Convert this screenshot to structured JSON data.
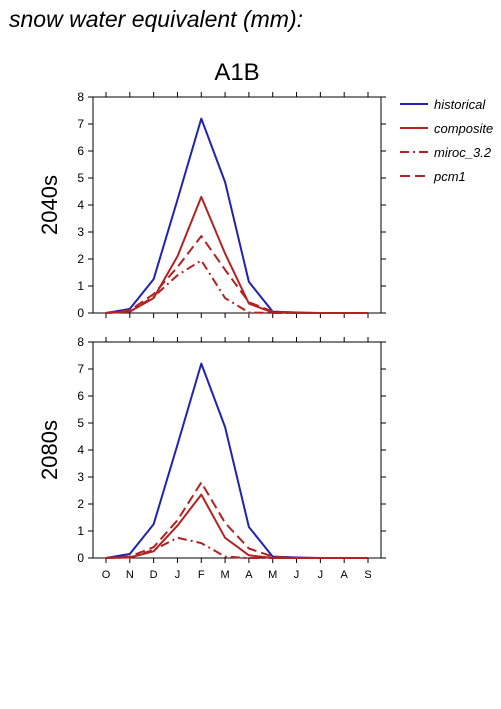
{
  "heading": "snow water equivalent (mm):",
  "chart_data": {
    "type": "line",
    "title": "A1B",
    "months": [
      "O",
      "N",
      "D",
      "J",
      "F",
      "M",
      "A",
      "M",
      "J",
      "J",
      "A",
      "S"
    ],
    "ylim": [
      0,
      8
    ],
    "yticks": [
      0,
      1,
      2,
      3,
      4,
      5,
      6,
      7,
      8
    ],
    "grid": false,
    "legend_position": "right",
    "legend": [
      {
        "name": "historical",
        "color": "#2222b0",
        "dash": "solid"
      },
      {
        "name": "composite",
        "color": "#b22222",
        "dash": "solid"
      },
      {
        "name": "miroc_3.2",
        "color": "#b22222",
        "dash": "dashdot"
      },
      {
        "name": "pcm1",
        "color": "#b22222",
        "dash": "dashed"
      }
    ],
    "panels": [
      {
        "label": "2040s",
        "series": [
          {
            "name": "historical",
            "values": [
              0,
              0.15,
              1.25,
              4.2,
              7.2,
              4.85,
              1.15,
              0.05,
              0.02,
              0,
              0,
              0
            ]
          },
          {
            "name": "composite",
            "values": [
              0,
              0.05,
              0.55,
              2.1,
              4.3,
              2.2,
              0.35,
              0.02,
              0,
              0,
              0,
              0
            ]
          },
          {
            "name": "miroc_3.2",
            "values": [
              0,
              0.05,
              0.6,
              1.4,
              1.95,
              0.55,
              0.02,
              0,
              0,
              0,
              0,
              0
            ]
          },
          {
            "name": "pcm1",
            "values": [
              0,
              0.1,
              0.7,
              1.7,
              2.85,
              1.6,
              0.4,
              0.05,
              0,
              0,
              0,
              0
            ]
          }
        ]
      },
      {
        "label": "2080s",
        "series": [
          {
            "name": "historical",
            "values": [
              0,
              0.15,
              1.25,
              4.2,
              7.2,
              4.85,
              1.15,
              0.05,
              0.02,
              0,
              0,
              0
            ]
          },
          {
            "name": "composite",
            "values": [
              0,
              0.02,
              0.25,
              1.2,
              2.35,
              0.75,
              0.1,
              0,
              0,
              0,
              0,
              0
            ]
          },
          {
            "name": "miroc_3.2",
            "values": [
              0,
              0.02,
              0.3,
              0.75,
              0.55,
              0.05,
              0,
              0,
              0,
              0,
              0,
              0
            ]
          },
          {
            "name": "pcm1",
            "values": [
              0,
              0.05,
              0.4,
              1.4,
              2.8,
              1.3,
              0.35,
              0.05,
              0,
              0,
              0,
              0
            ]
          }
        ]
      }
    ]
  }
}
